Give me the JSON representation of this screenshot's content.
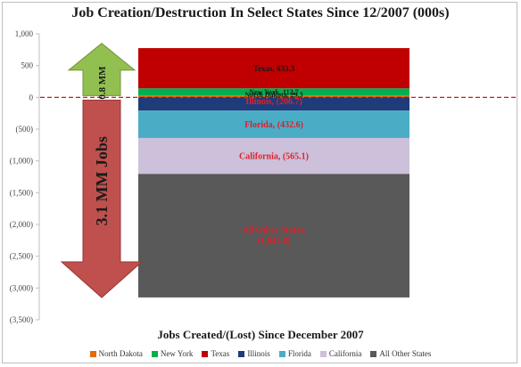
{
  "chart_data": {
    "type": "bar",
    "stacked": true,
    "title": "Job Creation/Destruction In Select States Since 12/2007 (000s)",
    "xlabel": "Jobs Created/(Lost) Since December 2007",
    "ylabel": "",
    "ylim": [
      -3500,
      1000
    ],
    "yticks": [
      1000,
      500,
      0,
      -500,
      -1000,
      -1500,
      -2000,
      -2500,
      -3000,
      -3500
    ],
    "ytick_labels": [
      "1,000",
      "500",
      "0",
      "(500)",
      "(1,000)",
      "(1,500)",
      "(2,000)",
      "(2,500)",
      "(3,000)",
      "(3,500)"
    ],
    "grid": false,
    "legend_position": "bottom",
    "positive_series": [
      {
        "name": "North Dakota",
        "value": 29.3,
        "color": "#e46c0a",
        "label": "North Dakota, 29.3",
        "label_color": "#1a1a1a"
      },
      {
        "name": "New York",
        "value": 112.7,
        "color": "#00b050",
        "label": "New York, 112.7",
        "label_color": "#1a1a1a"
      },
      {
        "name": "Texas",
        "value": 633.3,
        "color": "#c00000",
        "label": "Texas, 633.3",
        "label_color": "#1a1a1a"
      }
    ],
    "negative_series": [
      {
        "name": "Illinois",
        "value": -206.7,
        "color": "#1f3b7a",
        "label": "Illinois, (206.7)",
        "label_color": "#e0202a"
      },
      {
        "name": "Florida",
        "value": -432.6,
        "color": "#4bacc6",
        "label": "Florida, (432.6)",
        "label_color": "#e0202a"
      },
      {
        "name": "California",
        "value": -565.1,
        "color": "#ccc0da",
        "label": "California, (565.1)",
        "label_color": "#e0202a"
      },
      {
        "name": "All Other States",
        "value": -1943.8,
        "color": "#595959",
        "label": "All Other States, (1,943.8)",
        "label_color": "#e0202a"
      }
    ],
    "legend": [
      {
        "name": "North Dakota",
        "color": "#e46c0a"
      },
      {
        "name": "New York",
        "color": "#00b050"
      },
      {
        "name": "Texas",
        "color": "#c00000"
      },
      {
        "name": "Illinois",
        "color": "#1f3b7a"
      },
      {
        "name": "Florida",
        "color": "#4bacc6"
      },
      {
        "name": "California",
        "color": "#ccc0da"
      },
      {
        "name": "All Other States",
        "color": "#595959"
      }
    ],
    "zero_line": {
      "style": "dashed",
      "color": "#c00000"
    },
    "annotations": {
      "up_arrow": {
        "text": "0.8 MM",
        "value": 0.8,
        "color": "#92c050"
      },
      "down_arrow": {
        "text": "3.1 MM Jobs",
        "value": -3.1,
        "color": "#c0504d"
      }
    }
  }
}
